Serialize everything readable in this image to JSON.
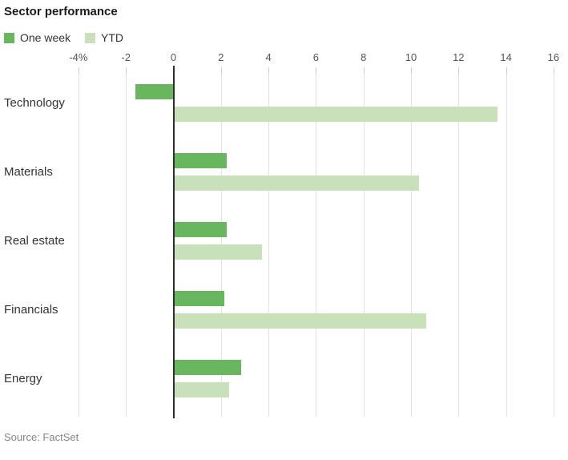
{
  "title": "Sector performance",
  "source": "Source: FactSet",
  "legend": {
    "position": "top-left",
    "items": [
      {
        "label": "One week",
        "color": "#68b75e"
      },
      {
        "label": "YTD",
        "color": "#c9e1ba"
      }
    ]
  },
  "colors": {
    "one_week_green": "#68b75e",
    "ytd_light_green": "#c9e1ba",
    "gridline": "#e2e2e2",
    "zero_line": "#2e2e2e",
    "axis_label": "#555555",
    "category_label": "#333333",
    "source_text": "#848484"
  },
  "chart_data": {
    "type": "bar",
    "orientation": "horizontal",
    "title": "Sector performance",
    "xlabel": "",
    "ylabel": "",
    "xlim": [
      -4,
      16
    ],
    "grid": true,
    "unit": "%",
    "categories": [
      "Technology",
      "Materials",
      "Real estate",
      "Financials",
      "Energy"
    ],
    "series": [
      {
        "name": "One week",
        "color": "#68b75e",
        "values": [
          -1.6,
          2.2,
          2.2,
          2.1,
          2.8
        ]
      },
      {
        "name": "YTD",
        "color": "#c9e1ba",
        "values": [
          13.6,
          10.3,
          3.7,
          10.6,
          2.3
        ]
      }
    ],
    "x_ticks": [
      {
        "value": -4,
        "label": "-4%"
      },
      {
        "value": -2,
        "label": "-2"
      },
      {
        "value": 0,
        "label": "0"
      },
      {
        "value": 2,
        "label": "2"
      },
      {
        "value": 4,
        "label": "4"
      },
      {
        "value": 6,
        "label": "6"
      },
      {
        "value": 8,
        "label": "8"
      },
      {
        "value": 10,
        "label": "10"
      },
      {
        "value": 12,
        "label": "12"
      },
      {
        "value": 14,
        "label": "14"
      },
      {
        "value": 16,
        "label": "16"
      }
    ]
  }
}
